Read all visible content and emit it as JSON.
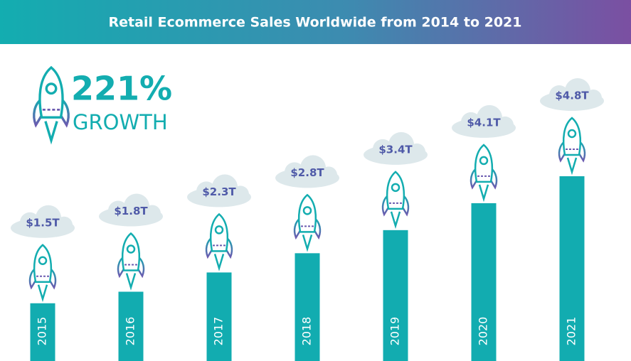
{
  "chart_data": {
    "type": "bar",
    "title": "Retail Ecommerce Sales Worldwide from 2014 to 2021",
    "annotation": "221%",
    "annotation_subtitle": "GROWTH",
    "categories": [
      "2015",
      "2016",
      "2017",
      "2018",
      "2019",
      "2020",
      "2021"
    ],
    "values": [
      1.5,
      1.8,
      2.3,
      2.8,
      3.4,
      4.1,
      4.8
    ],
    "value_labels": [
      "$1.5T",
      "$1.8T",
      "$2.3T",
      "$2.8T",
      "$3.4T",
      "$4.1T",
      "$4.8T"
    ],
    "color": "#12acb0"
  }
}
